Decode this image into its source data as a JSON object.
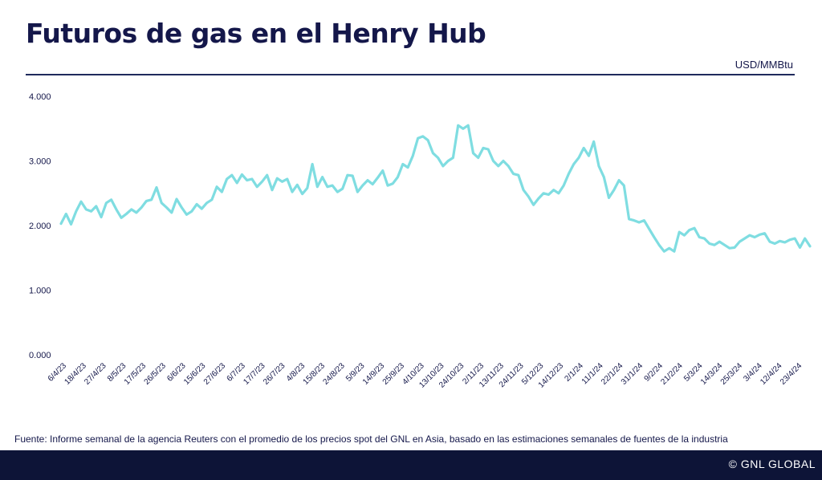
{
  "header": {
    "title": "Futuros de gas en el Henry Hub",
    "unit": "USD/MMBtu"
  },
  "source": "Fuente: Informe semanal de la agencia Reuters con el promedio de los precios spot del GNL en Asia, basado en las estimaciones semanales de fuentes de la industria",
  "footer": {
    "brand": "© GNL GLOBAL"
  },
  "colors": {
    "line": "#7fdde1",
    "title": "#14174a",
    "footer": "#0d1437"
  },
  "chart_data": {
    "type": "line",
    "ylim": [
      0,
      4
    ],
    "y_ticks": [
      "0.000",
      "1.000",
      "2.000",
      "3.000",
      "4.000"
    ],
    "y_tick_values": [
      0,
      1,
      2,
      3,
      4
    ],
    "x_tick_labels": [
      "6/4/23",
      "18/4/23",
      "27/4/23",
      "8/5/23",
      "17/5/23",
      "26/5/23",
      "6/6/23",
      "15/6/23",
      "27/6/23",
      "6/7/23",
      "17/7/23",
      "26/7/23",
      "4/8/23",
      "15/8/23",
      "24/8/23",
      "5/9/23",
      "14/9/23",
      "25/9/23",
      "4/10/23",
      "13/10/23",
      "24/10/23",
      "2/11/23",
      "13/11/23",
      "24/11/23",
      "5/12/23",
      "14/12/23",
      "2/1/24",
      "11/1/24",
      "22/1/24",
      "31/1/24",
      "9/2/24",
      "21/2/24",
      "5/3/24",
      "14/3/24",
      "25/3/24",
      "3/4/24",
      "12/4/24",
      "23/4/24"
    ],
    "grid": false,
    "legend": "none",
    "series": [
      {
        "values": [
          2.03,
          2.18,
          2.02,
          2.22,
          2.37,
          2.25,
          2.22,
          2.3,
          2.13,
          2.35,
          2.4,
          2.25,
          2.12,
          2.18,
          2.25,
          2.2,
          2.28,
          2.38,
          2.4,
          2.59,
          2.35,
          2.28,
          2.2,
          2.41,
          2.28,
          2.17,
          2.22,
          2.33,
          2.26,
          2.35,
          2.4,
          2.6,
          2.52,
          2.72,
          2.78,
          2.66,
          2.79,
          2.7,
          2.72,
          2.6,
          2.68,
          2.78,
          2.55,
          2.73,
          2.68,
          2.72,
          2.52,
          2.63,
          2.49,
          2.58,
          2.95,
          2.6,
          2.75,
          2.6,
          2.62,
          2.52,
          2.57,
          2.78,
          2.77,
          2.52,
          2.62,
          2.7,
          2.64,
          2.74,
          2.85,
          2.62,
          2.65,
          2.75,
          2.95,
          2.9,
          3.08,
          3.35,
          3.38,
          3.32,
          3.12,
          3.05,
          2.92,
          3.0,
          3.05,
          3.55,
          3.5,
          3.55,
          3.12,
          3.05,
          3.2,
          3.18,
          3.0,
          2.92,
          3.0,
          2.92,
          2.8,
          2.78,
          2.55,
          2.45,
          2.32,
          2.42,
          2.5,
          2.48,
          2.55,
          2.5,
          2.62,
          2.8,
          2.95,
          3.05,
          3.2,
          3.08,
          3.3,
          2.92,
          2.75,
          2.43,
          2.55,
          2.7,
          2.62,
          2.1,
          2.08,
          2.05,
          2.08,
          1.95,
          1.82,
          1.7,
          1.6,
          1.65,
          1.6,
          1.9,
          1.85,
          1.93,
          1.96,
          1.82,
          1.8,
          1.72,
          1.7,
          1.75,
          1.7,
          1.65,
          1.66,
          1.75,
          1.8,
          1.85,
          1.82,
          1.86,
          1.88,
          1.75,
          1.72,
          1.76,
          1.74,
          1.78,
          1.8,
          1.66,
          1.8,
          1.68
        ]
      }
    ]
  }
}
